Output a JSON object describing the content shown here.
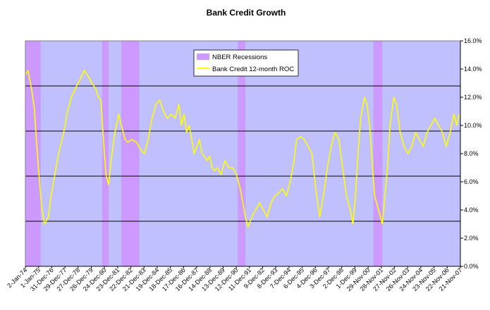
{
  "chart_data": {
    "type": "line",
    "title": "Bank Credit Growth",
    "xlabel": "",
    "ylabel": "",
    "ylim": [
      0,
      16
    ],
    "y_ticks": [
      "0.0%",
      "2.0%",
      "4.0%",
      "6.0%",
      "8.0%",
      "10.0%",
      "12.0%",
      "14.0%",
      "16.0%"
    ],
    "y_axis_position": "right",
    "x_ticks": [
      "2-Jan-74",
      "1-Jan-75",
      "31-Dec-76",
      "29-Dec-77",
      "27-Dec-78",
      "26-Dec-79",
      "24-Dec-80",
      "23-Dec-81",
      "22-Dec-82",
      "21-Dec-83",
      "19-Dec-84",
      "18-Dec-85",
      "17-Dec-86",
      "16-Dec-87",
      "14-Dec-88",
      "13-Dec-89",
      "12-Dec-90",
      "11-Dec-91",
      "9-Dec-92",
      "8-Dec-93",
      "7-Dec-94",
      "6-Dec-95",
      "4-Dec-96",
      "3-Dec-97",
      "2-Dec-98",
      "1-Dec-99",
      "29-Nov-00",
      "28-Nov-01",
      "27-Nov-02",
      "26-Nov-03",
      "24-Nov-04",
      "23-Nov-05",
      "22-Nov-06",
      "21-Nov-07"
    ],
    "x_range": [
      1974.0,
      2008.0
    ],
    "gridlines_y": [
      3.2,
      6.4,
      9.6,
      12.8
    ],
    "legend_position": "top-center",
    "legend": [
      "NBER Recessions",
      "Bank Credit 12-month ROC"
    ],
    "recessions": [
      {
        "start": 1974.0,
        "end": 1975.2
      },
      {
        "start": 1980.0,
        "end": 1980.5
      },
      {
        "start": 1981.5,
        "end": 1982.9
      },
      {
        "start": 1990.6,
        "end": 1991.2
      },
      {
        "start": 2001.2,
        "end": 2001.9
      }
    ],
    "series": [
      {
        "name": "Bank Credit 12-month ROC",
        "x": [
          1974.0,
          1974.2,
          1974.5,
          1974.7,
          1974.9,
          1975.1,
          1975.3,
          1975.5,
          1975.8,
          1976.0,
          1976.3,
          1976.6,
          1977.0,
          1977.3,
          1977.6,
          1978.0,
          1978.3,
          1978.6,
          1978.9,
          1979.2,
          1979.5,
          1979.7,
          1979.9,
          1980.1,
          1980.3,
          1980.5,
          1980.7,
          1981.0,
          1981.3,
          1981.5,
          1981.8,
          1982.0,
          1982.3,
          1982.7,
          1983.0,
          1983.3,
          1983.6,
          1983.9,
          1984.2,
          1984.5,
          1984.8,
          1985.1,
          1985.4,
          1985.7,
          1986.0,
          1986.2,
          1986.4,
          1986.6,
          1986.8,
          1987.0,
          1987.2,
          1987.4,
          1987.6,
          1987.8,
          1988.0,
          1988.2,
          1988.4,
          1988.6,
          1988.8,
          1989.0,
          1989.3,
          1989.6,
          1989.9,
          1990.2,
          1990.5,
          1990.8,
          1991.0,
          1991.2,
          1991.4,
          1991.7,
          1992.0,
          1992.3,
          1992.6,
          1992.9,
          1993.2,
          1993.5,
          1993.8,
          1994.1,
          1994.4,
          1994.7,
          1995.0,
          1995.2,
          1995.5,
          1995.8,
          1996.1,
          1996.4,
          1996.7,
          1997.0,
          1997.3,
          1997.6,
          1997.9,
          1998.2,
          1998.5,
          1998.8,
          1999.1,
          1999.4,
          1999.6,
          1999.8,
          2000.0,
          2000.2,
          2000.5,
          2000.7,
          2000.9,
          2001.1,
          2001.3,
          2001.6,
          2001.9,
          2002.1,
          2002.3,
          2002.5,
          2002.8,
          2003.0,
          2003.3,
          2003.6,
          2003.9,
          2004.2,
          2004.5,
          2004.8,
          2005.1,
          2005.4,
          2005.7,
          2006.0,
          2006.3,
          2006.6,
          2006.9,
          2007.2,
          2007.5,
          2007.7,
          2007.9
        ],
        "y": [
          13.6,
          13.9,
          12.5,
          11.2,
          8.5,
          6.0,
          4.0,
          3.0,
          3.5,
          5.0,
          6.5,
          8.0,
          9.5,
          11.0,
          12.0,
          12.8,
          13.3,
          13.9,
          13.5,
          13.0,
          12.6,
          12.0,
          11.8,
          9.0,
          6.5,
          5.8,
          7.5,
          9.5,
          10.8,
          10.0,
          9.0,
          8.8,
          9.0,
          8.8,
          8.3,
          8.0,
          9.0,
          10.5,
          11.5,
          11.8,
          11.0,
          10.5,
          10.8,
          10.5,
          11.5,
          10.0,
          10.8,
          9.5,
          10.0,
          9.0,
          8.0,
          8.5,
          9.0,
          8.0,
          7.8,
          7.5,
          7.8,
          7.0,
          6.8,
          7.0,
          6.5,
          7.5,
          7.0,
          7.0,
          6.5,
          5.5,
          4.5,
          3.5,
          2.8,
          3.5,
          4.0,
          4.5,
          4.0,
          3.5,
          4.5,
          5.0,
          5.2,
          5.5,
          5.0,
          6.0,
          7.5,
          9.0,
          9.2,
          9.0,
          8.5,
          8.0,
          5.5,
          3.5,
          5.0,
          7.0,
          8.5,
          9.5,
          9.0,
          7.0,
          5.0,
          4.0,
          3.0,
          5.0,
          8.0,
          10.5,
          12.0,
          11.5,
          10.0,
          7.5,
          5.0,
          4.0,
          3.0,
          5.0,
          7.0,
          10.0,
          12.0,
          11.5,
          9.5,
          8.5,
          8.0,
          8.5,
          9.5,
          9.0,
          8.5,
          9.5,
          10.0,
          10.5,
          10.0,
          9.5,
          8.5,
          9.5,
          10.8,
          10.0,
          10.8
        ]
      }
    ],
    "colors": {
      "plot_background": "#c0c0ff",
      "recession_band": "#cc99ff",
      "line": "#ffff00",
      "gridline": "#000000"
    }
  }
}
